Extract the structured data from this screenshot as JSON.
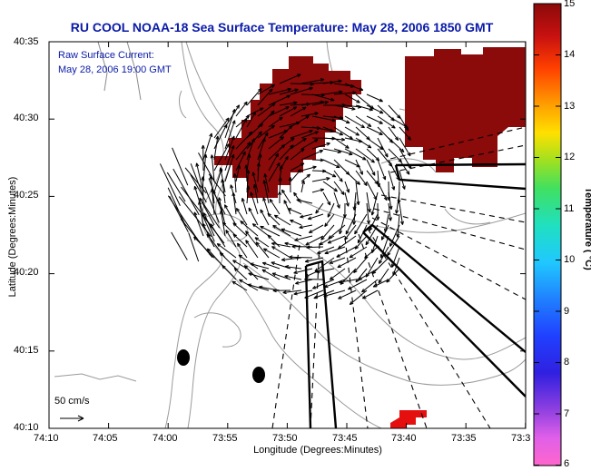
{
  "title": "RU COOL  NOAA-18  Sea Surface Temperature:  May 28, 2006 1850 GMT",
  "legend": {
    "line1": "Raw Surface Current:",
    "line2": "May 28, 2006 19:00 GMT"
  },
  "x_axis": {
    "label": "Longitude (Degrees:Minutes)",
    "ticks": [
      "74:10",
      "74:05",
      "74:00",
      "73:55",
      "73:50",
      "73:45",
      "73:40",
      "73:35",
      "73:3"
    ]
  },
  "y_axis": {
    "label": "Latitude (Degrees:Minutes)",
    "ticks": [
      "40:35",
      "40:30",
      "40:25",
      "40:20",
      "40:15",
      "40:10"
    ]
  },
  "colorbar": {
    "label": "Temperature ( °C)",
    "ticks": [
      "15",
      "14",
      "13",
      "12",
      "11",
      "10",
      "9",
      "8",
      "7",
      "6"
    ]
  },
  "scale": {
    "label": "50 cm/s"
  },
  "colors": {
    "title": "#0a1aa8",
    "sst_patch": "#8b0a0a",
    "hot_patch": "#e60f0f"
  }
}
